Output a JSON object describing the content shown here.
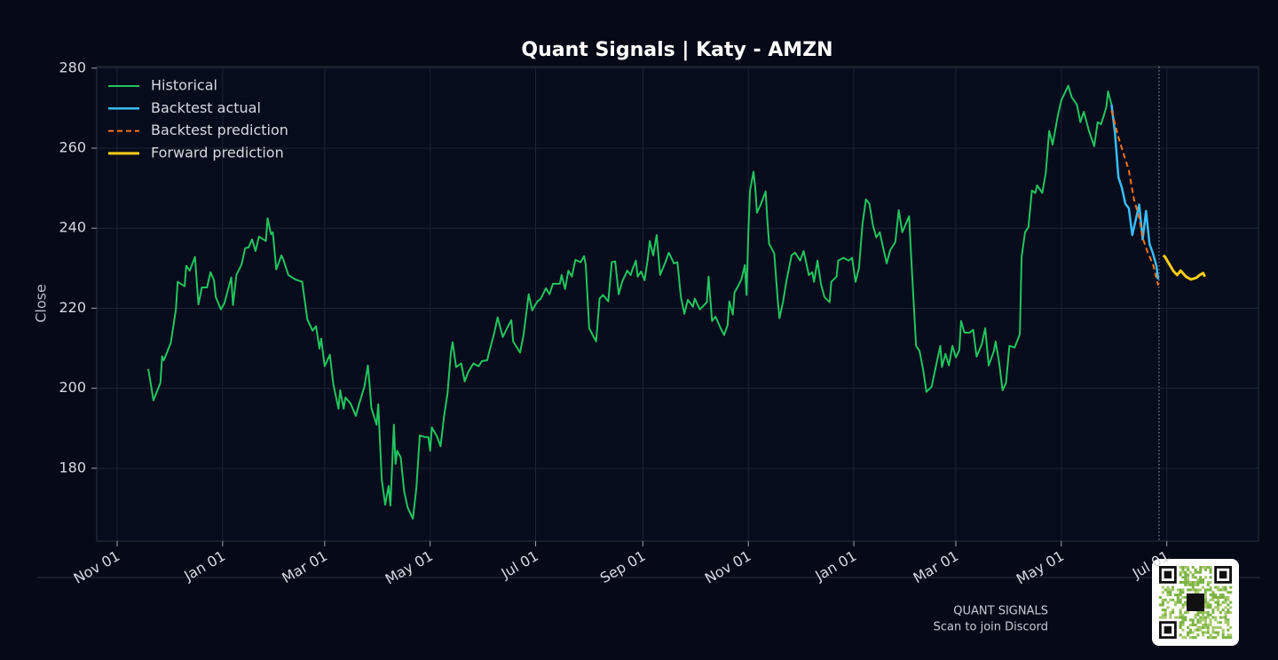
{
  "chart_data": {
    "type": "line",
    "title": "Quant Signals | Katy - AMZN",
    "y_label": "Close",
    "xlim": [
      -11.8,
      660
    ],
    "xticks": [
      {
        "value": 0,
        "label": "Nov 01"
      },
      {
        "value": 61,
        "label": "Jan 01"
      },
      {
        "value": 120,
        "label": "Mar 01"
      },
      {
        "value": 181,
        "label": "May 01"
      },
      {
        "value": 242,
        "label": "Jul 01"
      },
      {
        "value": 304,
        "label": "Sep 01"
      },
      {
        "value": 365,
        "label": "Nov 01"
      },
      {
        "value": 426,
        "label": "Jan 01"
      },
      {
        "value": 485,
        "label": "Mar 01"
      },
      {
        "value": 546,
        "label": "May 01"
      },
      {
        "value": 607,
        "label": "Jul 01"
      }
    ],
    "ylim": [
      161.8,
      280.4
    ],
    "yticks": [
      180,
      200,
      220,
      240,
      260,
      280
    ],
    "grid": true,
    "legend": "upper left",
    "vline_x": 602.5,
    "series": [
      {
        "name": "Historical",
        "color": "#22c55e",
        "width": 2,
        "dash": false,
        "x": [
          18,
          21,
          25,
          26,
          27,
          31,
          34,
          35,
          39,
          40,
          42,
          45,
          47,
          49,
          52,
          54,
          56,
          57,
          60,
          62,
          66,
          67,
          69,
          72,
          74,
          76,
          78,
          80,
          82,
          86,
          87,
          89,
          90,
          92,
          95,
          96,
          99,
          103,
          107,
          110,
          113,
          115,
          117,
          118,
          120,
          123,
          125,
          128,
          129,
          131,
          132,
          135,
          138,
          140,
          143,
          145,
          146,
          147,
          150,
          151,
          153,
          155,
          157,
          158,
          160,
          161,
          162,
          164,
          166,
          168,
          171,
          173,
          175,
          178,
          180,
          181,
          182,
          185,
          187,
          189,
          191,
          193,
          194,
          196,
          199,
          201,
          203,
          206,
          209,
          211,
          214,
          215,
          218,
          220,
          223,
          226,
          228,
          229,
          233,
          235,
          238,
          240,
          243,
          245,
          248,
          250,
          252,
          256,
          257,
          259,
          261,
          263,
          265,
          268,
          270,
          271,
          273,
          275,
          277,
          279,
          281,
          284,
          286,
          288,
          290,
          292,
          295,
          297,
          298,
          300,
          301,
          303,
          305,
          307,
          308,
          310,
          312,
          314,
          317,
          319,
          322,
          324,
          326,
          328,
          330,
          333,
          334,
          337,
          339,
          341,
          342,
          344,
          346,
          349,
          351,
          353,
          354,
          356,
          357,
          359,
          361,
          363,
          364,
          365,
          366,
          368,
          369,
          370,
          372,
          375,
          376,
          377,
          380,
          382,
          383,
          385,
          387,
          390,
          392,
          395,
          397,
          400,
          402,
          403,
          405,
          407,
          409,
          412,
          413,
          416,
          417,
          420,
          423,
          425,
          427,
          429,
          431,
          433,
          435,
          437,
          439,
          441,
          443,
          445,
          447,
          450,
          452,
          454,
          456,
          458,
          459,
          462,
          464,
          466,
          468,
          471,
          474,
          476,
          477,
          479,
          481,
          483,
          485,
          487,
          488,
          490,
          493,
          495,
          497,
          500,
          502,
          504,
          507,
          508,
          510,
          512,
          514,
          516,
          519,
          522,
          523,
          525,
          527,
          529,
          531,
          532,
          535,
          537,
          539,
          541,
          544,
          546,
          550,
          552,
          555,
          557,
          559,
          562,
          565,
          567,
          569,
          572,
          573,
          575
        ],
        "values": [
          204.8,
          197,
          201.3,
          208,
          207,
          211.3,
          219.7,
          226.6,
          225.5,
          230.6,
          229.4,
          232.8,
          221,
          225.2,
          225.2,
          229,
          227,
          222.8,
          219.7,
          221.2,
          227.7,
          220.8,
          228.3,
          231,
          235,
          235.2,
          237.2,
          234.3,
          237.9,
          236.8,
          242.5,
          238.5,
          239,
          229.7,
          233.2,
          232.3,
          228.3,
          227.2,
          226.6,
          217.2,
          214.4,
          215.5,
          209.9,
          212.4,
          205.5,
          208.4,
          201,
          194.9,
          199.5,
          194.9,
          197.7,
          196.2,
          193.1,
          196.2,
          200.4,
          205.7,
          200.8,
          195.1,
          190.9,
          196,
          177.3,
          170.9,
          175.6,
          170.7,
          190.9,
          181.1,
          184.4,
          182.7,
          174.2,
          170.2,
          167.4,
          174.9,
          188.2,
          187.8,
          187.8,
          184.4,
          190.2,
          187.9,
          185.5,
          192.9,
          198.6,
          209,
          211.5,
          205.3,
          206.2,
          201.7,
          204,
          206.2,
          205.5,
          206.8,
          207,
          208.8,
          213.7,
          217.7,
          212.8,
          215.5,
          217,
          211.7,
          208.9,
          213.3,
          223.5,
          219.5,
          221.7,
          222.4,
          225,
          223.5,
          226.1,
          226.1,
          228.3,
          224.8,
          229.4,
          227.9,
          232.1,
          231.5,
          233,
          230.8,
          215,
          213.3,
          211.7,
          222.4,
          223.3,
          221.7,
          231.5,
          231.7,
          223.5,
          226.6,
          229.4,
          228.3,
          229.7,
          231.9,
          227.9,
          229.2,
          227,
          232.8,
          236.8,
          233.2,
          238.3,
          228.3,
          231.5,
          233.9,
          231.2,
          231.5,
          222.8,
          218.6,
          222.1,
          220.4,
          222.4,
          219.7,
          220.6,
          221.5,
          227.9,
          216.8,
          217.9,
          215,
          213.3,
          215.7,
          221.7,
          218.4,
          223.9,
          225.5,
          227.2,
          230.8,
          223.3,
          239,
          249.4,
          254.1,
          250.1,
          243.9,
          245.7,
          249.2,
          242.1,
          236.1,
          233.7,
          222.1,
          217.5,
          221.5,
          226.8,
          233.2,
          233.9,
          231.9,
          234.3,
          228.3,
          229,
          226.6,
          231.9,
          226.1,
          222.8,
          221.5,
          226.6,
          227.9,
          231.9,
          232.6,
          231.9,
          232.6,
          226.6,
          230.1,
          241,
          247.2,
          246.1,
          240.8,
          237.7,
          239,
          235,
          231.2,
          234.5,
          236.5,
          244.5,
          239,
          241,
          243,
          233.9,
          210.6,
          209.3,
          204.8,
          199.1,
          200.4,
          206.6,
          210.6,
          205.3,
          208.6,
          205.7,
          210.6,
          207.7,
          209.5,
          216.8,
          213.9,
          213.9,
          214.6,
          207.9,
          211,
          215,
          205.7,
          209.3,
          211.7,
          206.6,
          199.5,
          201.3,
          210.6,
          210.2,
          213.5,
          232.8,
          239,
          240.3,
          249.4,
          248.8,
          250.7,
          248.8,
          253.8,
          264.3,
          260.9,
          268.2,
          272,
          275.6,
          272.7,
          270.9,
          266.5,
          269.1,
          264.3,
          260.5,
          266.5,
          266,
          270.2,
          274.2,
          270.9
        ]
      },
      {
        "name": "Backtest actual",
        "color": "#38bdf8",
        "width": 2.5,
        "dash": false,
        "x": [
          575,
          577,
          579,
          581,
          583,
          585,
          587,
          589,
          591,
          593,
          595,
          597,
          599,
          601,
          602
        ],
        "values": [
          270.9,
          263.8,
          252.7,
          250.1,
          246.1,
          245,
          238.3,
          242.1,
          245.9,
          237.2,
          244.3,
          236.1,
          233.7,
          230.6,
          227.2
        ]
      },
      {
        "name": "Backtest prediction",
        "color": "#f97316",
        "width": 2,
        "dash": true,
        "x": [
          575,
          579,
          583,
          585,
          588,
          591,
          593,
          596,
          599,
          602
        ],
        "values": [
          269.4,
          262.7,
          257.2,
          254.5,
          247.2,
          242.7,
          237.6,
          233.9,
          231,
          225.7
        ]
      },
      {
        "name": "Forward prediction",
        "color": "#facc15",
        "width": 3,
        "dash": false,
        "x": [
          605,
          606,
          609,
          611,
          613,
          615,
          618,
          621,
          624,
          626,
          628,
          629
        ],
        "values": [
          233.2,
          232.8,
          230.6,
          229.2,
          228.3,
          229.4,
          227.9,
          227.2,
          227.6,
          228.3,
          228.8,
          227.9
        ]
      }
    ]
  },
  "footer": {
    "brand": "QUANT SIGNALS",
    "cta": "Scan to join Discord"
  }
}
